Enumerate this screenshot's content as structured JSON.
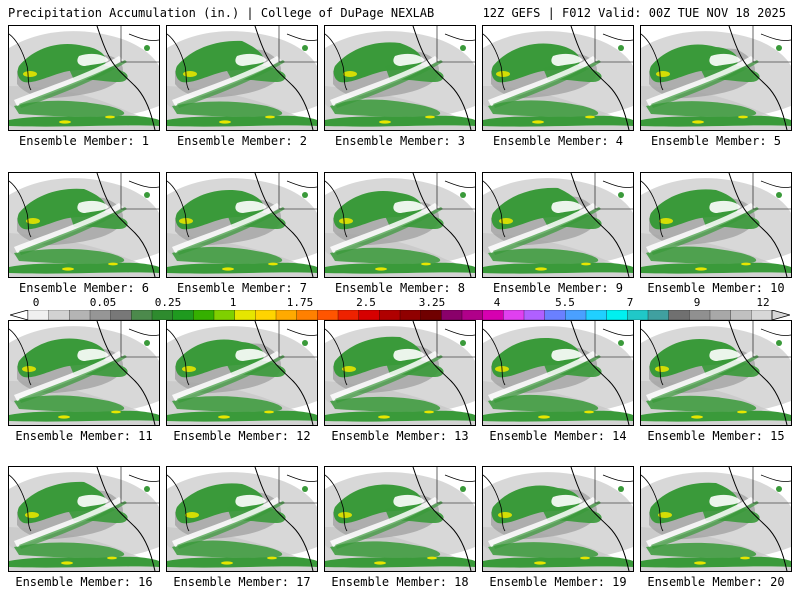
{
  "header": {
    "title_left": "Precipitation Accumulation (in.) | College of DuPage NEXLAB",
    "title_right": "12Z GEFS | F012 Valid: 00Z TUE NOV 18 2025"
  },
  "panels": [
    {
      "label": "Ensemble Member: 1"
    },
    {
      "label": "Ensemble Member: 2"
    },
    {
      "label": "Ensemble Member: 3"
    },
    {
      "label": "Ensemble Member: 4"
    },
    {
      "label": "Ensemble Member: 5"
    },
    {
      "label": "Ensemble Member: 6"
    },
    {
      "label": "Ensemble Member: 7"
    },
    {
      "label": "Ensemble Member: 8"
    },
    {
      "label": "Ensemble Member: 9"
    },
    {
      "label": "Ensemble Member: 10"
    },
    {
      "label": "Ensemble Member: 11"
    },
    {
      "label": "Ensemble Member: 12"
    },
    {
      "label": "Ensemble Member: 13"
    },
    {
      "label": "Ensemble Member: 14"
    },
    {
      "label": "Ensemble Member: 15"
    },
    {
      "label": "Ensemble Member: 16"
    },
    {
      "label": "Ensemble Member: 17"
    },
    {
      "label": "Ensemble Member: 18"
    },
    {
      "label": "Ensemble Member: 19"
    },
    {
      "label": "Ensemble Member: 20"
    }
  ],
  "colorbar": {
    "tick_labels": [
      "0",
      "0.05",
      "0.25",
      "1",
      "1.75",
      "2.5",
      "3.25",
      "4",
      "5.5",
      "7",
      "9",
      "12"
    ],
    "colors": [
      "#f0f0f0",
      "#d2d2d2",
      "#b4b4b4",
      "#969696",
      "#787878",
      "#4c8a4c",
      "#2e8b2e",
      "#1f9a1f",
      "#35b000",
      "#7fd000",
      "#e6e600",
      "#ffd400",
      "#ffaa00",
      "#ff8000",
      "#ff5500",
      "#ee2200",
      "#d60000",
      "#b00000",
      "#900000",
      "#700000",
      "#8a006a",
      "#b0008a",
      "#d600b0",
      "#e040f0",
      "#b060ff",
      "#6a80ff",
      "#4aa0ff",
      "#20d0ff",
      "#00f0f0",
      "#20c8c8",
      "#40a0a0",
      "#707070",
      "#909090",
      "#a8a8a8",
      "#c0c0c0",
      "#d8d8d8"
    ]
  },
  "map_colors": {
    "light_precip": "#c8c8c8",
    "medium_precip": "#a0a0a0",
    "green": "#3a9a3a",
    "yellow": "#e6e600",
    "coast": "#000000"
  }
}
